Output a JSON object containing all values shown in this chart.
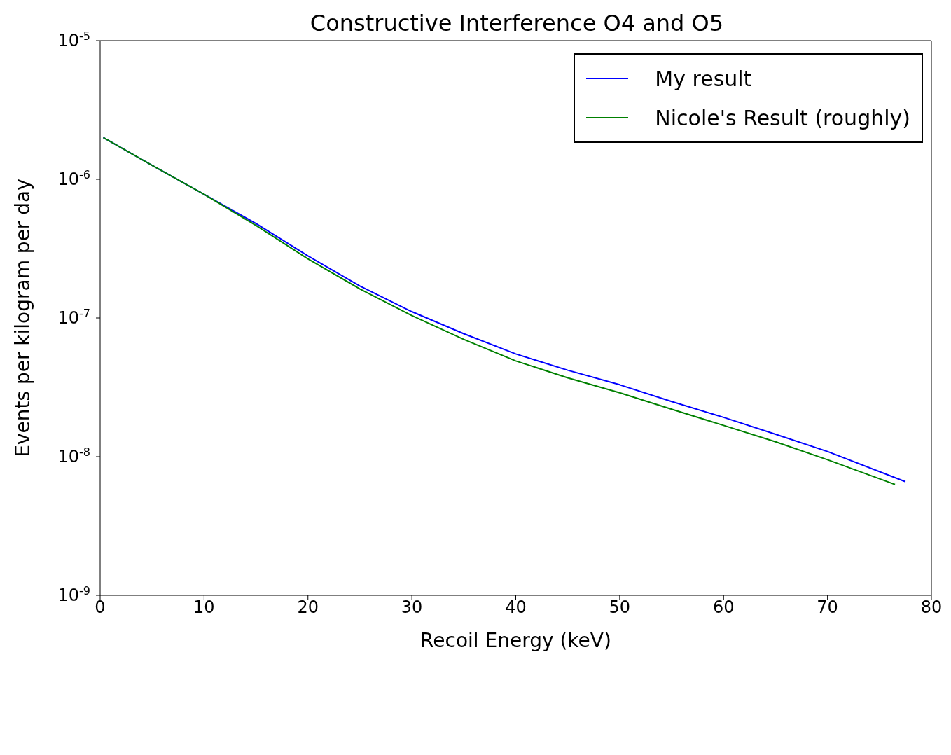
{
  "chart_data": {
    "type": "line",
    "title": "Constructive Interference O4 and O5",
    "xlabel": "Recoil Energy (keV)",
    "ylabel": "Events per kilogram per day",
    "log": "y",
    "xlim": [
      0,
      80
    ],
    "xticks": [
      0,
      10,
      20,
      30,
      40,
      50,
      60,
      70,
      80
    ],
    "ylim": [
      1e-09,
      1e-05
    ],
    "yticks": [
      {
        "value": 1e-09,
        "label": "10$^{-9}$"
      },
      {
        "value": 1e-08,
        "label": "10$^{-8}$"
      },
      {
        "value": 1e-07,
        "label": "10$^{-7}$"
      },
      {
        "value": 1e-06,
        "label": "10$^{-6}$"
      },
      {
        "value": 1e-05,
        "label": "10$^{-5}$"
      }
    ],
    "legend": "top right",
    "marker": "none",
    "line_style": "solid",
    "series": [
      {
        "name": "My result",
        "color": "#0000ff",
        "x": [
          0.3,
          5,
          10,
          15,
          20,
          25,
          30,
          35,
          40,
          45,
          50,
          55,
          60,
          65,
          70,
          77.5
        ],
        "values": [
          2e-06,
          1.26e-06,
          7.8e-07,
          4.8e-07,
          2.8e-07,
          1.7e-07,
          1.11e-07,
          7.7e-08,
          5.5e-08,
          4.2e-08,
          3.3e-08,
          2.5e-08,
          1.92e-08,
          1.45e-08,
          1.09e-08,
          6.6e-09
        ]
      },
      {
        "name": "Nicole's Result (roughly)",
        "color": "#008000",
        "x": [
          0.3,
          5,
          10,
          15,
          20,
          25,
          30,
          35,
          40,
          45,
          50,
          55,
          60,
          65,
          70,
          76.5
        ],
        "values": [
          2e-06,
          1.26e-06,
          7.8e-07,
          4.65e-07,
          2.67e-07,
          1.62e-07,
          1.04e-07,
          7e-08,
          4.9e-08,
          3.7e-08,
          2.89e-08,
          2.2e-08,
          1.68e-08,
          1.28e-08,
          9.5e-09,
          6.3e-09
        ]
      }
    ]
  }
}
